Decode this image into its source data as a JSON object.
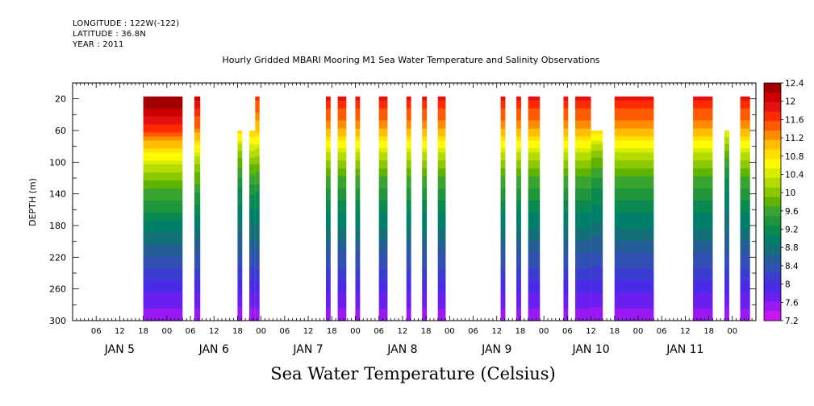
{
  "header": {
    "longitude": "LONGITUDE : 122W(-122)",
    "latitude": "LATITUDE : 36.8N",
    "year": "YEAR : 2011"
  },
  "chart_data": {
    "type": "heatmap",
    "title": "Hourly Gridded MBARI Mooring M1 Sea Water Temperature and Salinity Observations",
    "subtitle": "Sea Water Temperature (Celsius)",
    "ylabel": "DEPTH (m)",
    "xlabel": "",
    "ylim": [
      300,
      0
    ],
    "y_ticks": [
      20,
      60,
      100,
      140,
      180,
      220,
      260,
      300
    ],
    "x_hour_ticks": [
      "06",
      "12",
      "18",
      "00",
      "06",
      "12",
      "18",
      "00",
      "06",
      "12",
      "18",
      "00",
      "06",
      "12",
      "18",
      "00",
      "06",
      "12",
      "18",
      "00",
      "06",
      "12",
      "18",
      "00",
      "06",
      "12",
      "18",
      "00"
    ],
    "day_labels": [
      "JAN  5",
      "JAN  6",
      "JAN  7",
      "JAN  8",
      "JAN  9",
      "JAN 10",
      "JAN 11"
    ],
    "colorbar_levels": [
      12.4,
      12,
      11.6,
      11.2,
      10.8,
      10.4,
      10,
      9.6,
      9.2,
      8.8,
      8.4,
      8,
      7.6,
      7.2
    ],
    "colors": [
      "#a00000",
      "#cc0000",
      "#e51010",
      "#ff2a00",
      "#ff5a00",
      "#ff8c00",
      "#ffbe00",
      "#ffe000",
      "#fffa00",
      "#d8ee00",
      "#b4dc00",
      "#8cc800",
      "#60b400",
      "#3aa430",
      "#20963c",
      "#0a8a50",
      "#008068",
      "#147078",
      "#245e96",
      "#3050b4",
      "#3c3cd2",
      "#4a2ae6",
      "#6a1ef0",
      "#9a18f2",
      "#c818f2"
    ],
    "temperature_profile": {
      "depth": [
        20,
        60,
        100,
        140,
        180,
        220,
        260,
        300
      ],
      "temp_jan5": [
        12.4,
        11.6,
        10.4,
        9.6,
        9.0,
        8.4,
        7.9,
        7.4
      ],
      "temp_jan10": [
        11.8,
        11.2,
        10.2,
        9.6,
        9.0,
        8.5,
        8.0,
        7.3
      ]
    },
    "data_segments": [
      {
        "start_hr": 18.0,
        "end_hr": 28.0,
        "top": 20,
        "peak": 12.4
      },
      {
        "start_hr": 31.0,
        "end_hr": 32.5,
        "top": 20,
        "peak": 12.0
      },
      {
        "start_hr": 42.0,
        "end_hr": 43.2,
        "top": 60,
        "peak": 11.4
      },
      {
        "start_hr": 45.0,
        "end_hr": 46.5,
        "top": 60,
        "peak": 11.6
      },
      {
        "start_hr": 46.5,
        "end_hr": 47.6,
        "top": 20,
        "peak": 11.6
      },
      {
        "start_hr": 64.5,
        "end_hr": 65.7,
        "top": 20,
        "peak": 11.8
      },
      {
        "start_hr": 67.5,
        "end_hr": 69.7,
        "top": 20,
        "peak": 11.8
      },
      {
        "start_hr": 72.0,
        "end_hr": 73.2,
        "top": 20,
        "peak": 11.8
      },
      {
        "start_hr": 78.0,
        "end_hr": 80.2,
        "top": 20,
        "peak": 11.8
      },
      {
        "start_hr": 85.0,
        "end_hr": 86.2,
        "top": 20,
        "peak": 11.8
      },
      {
        "start_hr": 89.0,
        "end_hr": 90.2,
        "top": 20,
        "peak": 11.8
      },
      {
        "start_hr": 93.0,
        "end_hr": 95.0,
        "top": 20,
        "peak": 11.8
      },
      {
        "start_hr": 109.0,
        "end_hr": 110.2,
        "top": 20,
        "peak": 11.8
      },
      {
        "start_hr": 113.0,
        "end_hr": 114.2,
        "top": 20,
        "peak": 11.8
      },
      {
        "start_hr": 116.0,
        "end_hr": 119.0,
        "top": 20,
        "peak": 11.8
      },
      {
        "start_hr": 125.0,
        "end_hr": 126.2,
        "top": 20,
        "peak": 11.8
      },
      {
        "start_hr": 128.0,
        "end_hr": 132.0,
        "top": 20,
        "peak": 11.8
      },
      {
        "start_hr": 132.0,
        "end_hr": 135.0,
        "top": 60,
        "peak": 11.4
      },
      {
        "start_hr": 138.0,
        "end_hr": 148.0,
        "top": 20,
        "peak": 11.8
      },
      {
        "start_hr": 158.0,
        "end_hr": 163.0,
        "top": 20,
        "peak": 11.8
      },
      {
        "start_hr": 166.0,
        "end_hr": 167.2,
        "top": 60,
        "peak": 11.0
      },
      {
        "start_hr": 170.0,
        "end_hr": 172.5,
        "top": 20,
        "peak": 11.8
      }
    ]
  }
}
